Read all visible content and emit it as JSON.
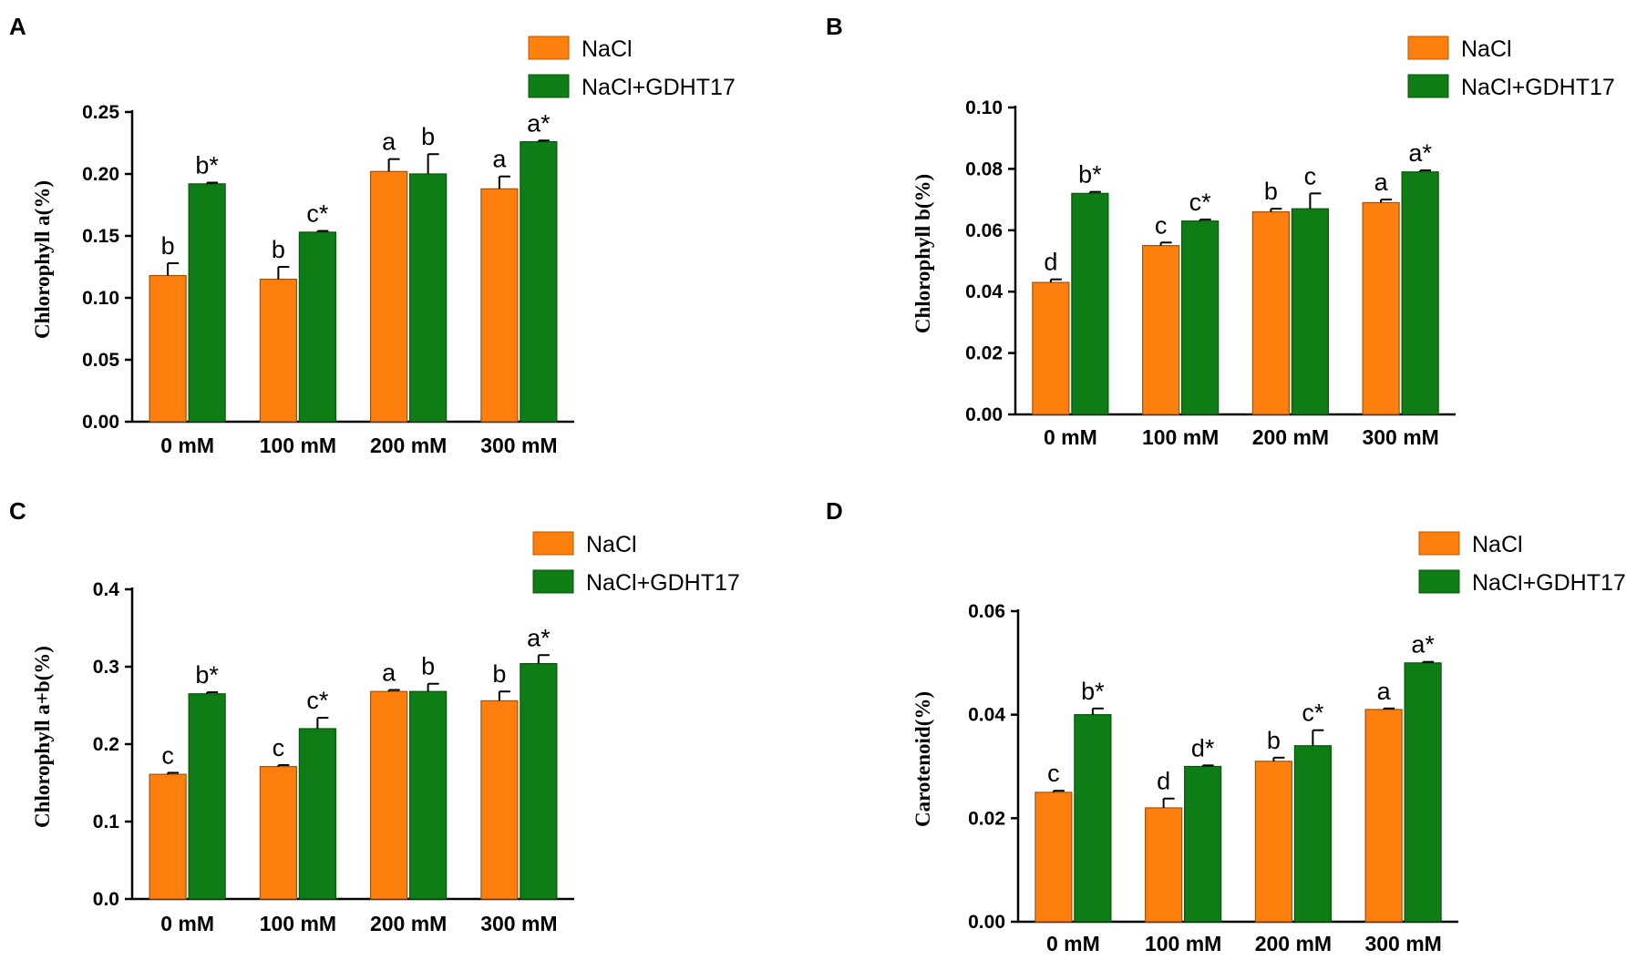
{
  "colors": {
    "nacl": "#FF7F0E",
    "gdht": "#0E7D16",
    "axis": "#000000"
  },
  "legend": {
    "series_1": "NaCl",
    "series_2": "NaCl+GDHT17"
  },
  "chart_data": [
    {
      "panel": "A",
      "type": "bar",
      "ylabel": "Chlorophyll a(%)",
      "ylim": [
        0,
        0.25
      ],
      "yticks": [
        "0.00",
        "0.05",
        "0.10",
        "0.15",
        "0.20",
        "0.25"
      ],
      "categories": [
        "0 mM",
        "100 mM",
        "200 mM",
        "300 mM"
      ],
      "series": [
        {
          "name": "NaCl",
          "values": [
            0.118,
            0.115,
            0.202,
            0.188
          ],
          "errors": [
            0.01,
            0.01,
            0.01,
            0.01
          ],
          "labels": [
            "b",
            "b",
            "a",
            "a"
          ]
        },
        {
          "name": "NaCl+GDHT17",
          "values": [
            0.192,
            0.153,
            0.2,
            0.226
          ],
          "errors": [
            0.001,
            0.001,
            0.016,
            0.001
          ],
          "labels": [
            "b*",
            "c*",
            "b",
            "a*"
          ]
        }
      ]
    },
    {
      "panel": "B",
      "type": "bar",
      "ylabel": "Chlorophyll b(%)",
      "ylim": [
        0,
        0.1
      ],
      "yticks": [
        "0.00",
        "0.02",
        "0.04",
        "0.06",
        "0.08",
        "0.10"
      ],
      "categories": [
        "0 mM",
        "100 mM",
        "200 mM",
        "300 mM"
      ],
      "series": [
        {
          "name": "NaCl",
          "values": [
            0.043,
            0.055,
            0.066,
            0.069
          ],
          "errors": [
            0.001,
            0.001,
            0.001,
            0.001
          ],
          "labels": [
            "d",
            "c",
            "b",
            "a"
          ]
        },
        {
          "name": "NaCl+GDHT17",
          "values": [
            0.072,
            0.063,
            0.067,
            0.079
          ],
          "errors": [
            0.0005,
            0.0005,
            0.005,
            0.0005
          ],
          "labels": [
            "b*",
            "c*",
            "c",
            "a*"
          ]
        }
      ]
    },
    {
      "panel": "C",
      "type": "bar",
      "ylabel": "Chlorophyll a+b(%)",
      "ylim": [
        0,
        0.4
      ],
      "yticks": [
        "0.0",
        "0.1",
        "0.2",
        "0.3",
        "0.4"
      ],
      "categories": [
        "0 mM",
        "100 mM",
        "200 mM",
        "300 mM"
      ],
      "series": [
        {
          "name": "NaCl",
          "values": [
            0.161,
            0.171,
            0.268,
            0.256
          ],
          "errors": [
            0.002,
            0.002,
            0.002,
            0.012
          ],
          "labels": [
            "c",
            "c",
            "a",
            "b"
          ]
        },
        {
          "name": "NaCl+GDHT17",
          "values": [
            0.265,
            0.22,
            0.268,
            0.304
          ],
          "errors": [
            0.002,
            0.014,
            0.01,
            0.011
          ],
          "labels": [
            "b*",
            "c*",
            "b",
            "a*"
          ]
        }
      ]
    },
    {
      "panel": "D",
      "type": "bar",
      "ylabel": "Carotenoid(%)",
      "ylim": [
        0,
        0.06
      ],
      "yticks": [
        "0.00",
        "0.02",
        "0.04",
        "0.06"
      ],
      "categories": [
        "0 mM",
        "100 mM",
        "200 mM",
        "300 mM"
      ],
      "series": [
        {
          "name": "NaCl",
          "values": [
            0.025,
            0.022,
            0.031,
            0.041
          ],
          "errors": [
            0.0003,
            0.0018,
            0.0007,
            0.0002
          ],
          "labels": [
            "c",
            "d",
            "b",
            "a"
          ]
        },
        {
          "name": "NaCl+GDHT17",
          "values": [
            0.04,
            0.03,
            0.034,
            0.05
          ],
          "errors": [
            0.0012,
            0.0002,
            0.003,
            0.0002
          ],
          "labels": [
            "b*",
            "d*",
            "c*",
            "a*"
          ]
        }
      ]
    }
  ]
}
